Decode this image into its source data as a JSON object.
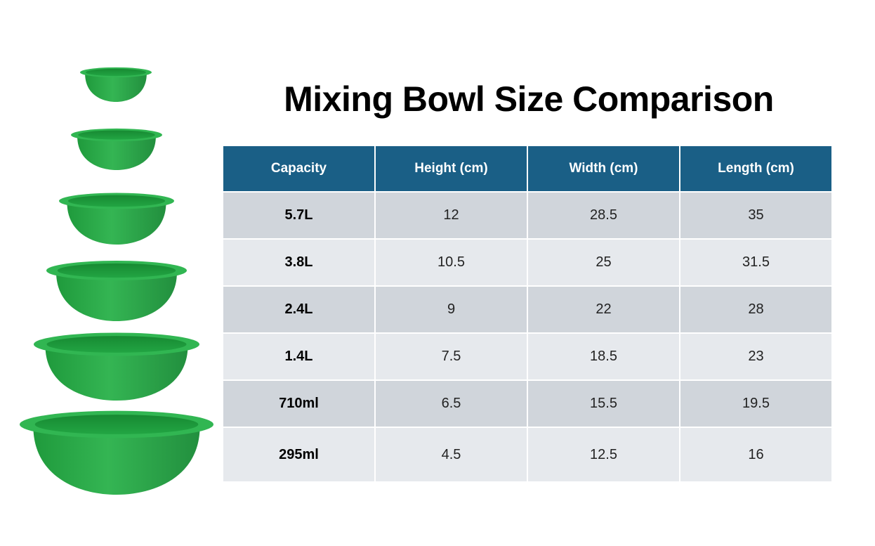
{
  "title": "Mixing Bowl Size Comparison",
  "colors": {
    "header_bg": "#1a5f86",
    "row_dark": "#d0d5db",
    "row_light": "#e6e9ed",
    "bowl_green": "#2eb24f"
  },
  "table": {
    "headers": [
      "Capacity",
      "Height (cm)",
      "Width (cm)",
      "Length (cm)"
    ],
    "rows": [
      [
        "5.7L",
        "12",
        "28.5",
        "35"
      ],
      [
        "3.8L",
        "10.5",
        "25",
        "31.5"
      ],
      [
        "2.4L",
        "9",
        "22",
        "28"
      ],
      [
        "1.4L",
        "7.5",
        "18.5",
        "23"
      ],
      [
        "710ml",
        "6.5",
        "15.5",
        "19.5"
      ],
      [
        "295ml",
        "4.5",
        "12.5",
        "16"
      ]
    ]
  }
}
